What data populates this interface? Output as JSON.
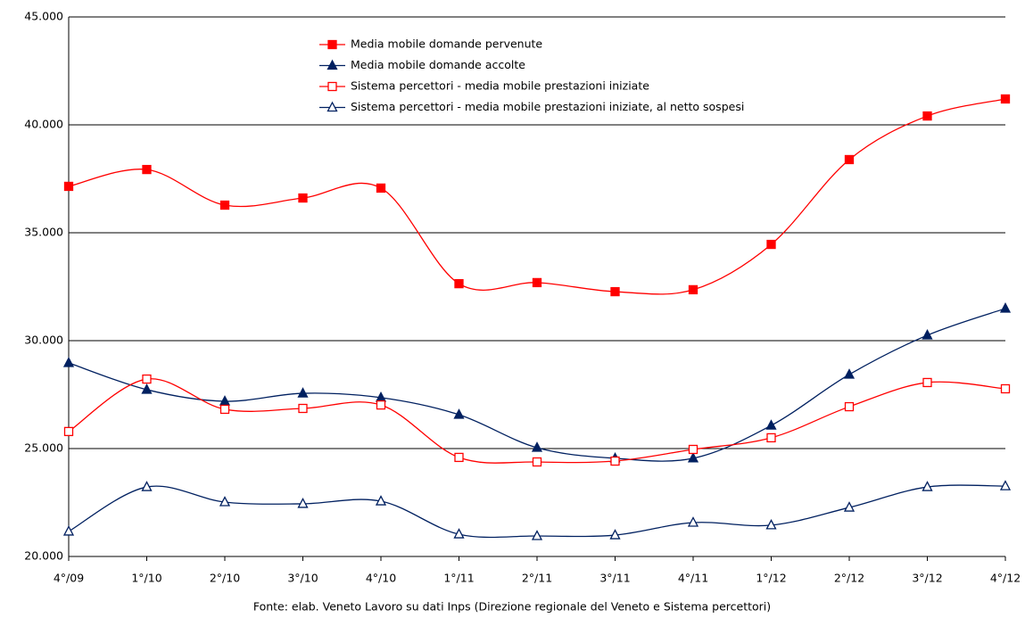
{
  "chart_data": {
    "type": "line",
    "categories": [
      "4°/09",
      "1°/10",
      "2°/10",
      "3°/10",
      "4°/10",
      "1°/11",
      "2°/11",
      "3°/11",
      "4°/11",
      "1°/12",
      "2°/12",
      "3°/12",
      "4°/12"
    ],
    "series": [
      {
        "name": "Media mobile domande pervenute",
        "color": "#ff0000",
        "marker": "square",
        "filled": true,
        "values": [
          37150,
          37930,
          36280,
          36610,
          37070,
          32640,
          32690,
          32270,
          32360,
          34460,
          38390,
          40410,
          41200
        ]
      },
      {
        "name": "Media mobile domande accolte",
        "color": "#002060",
        "marker": "triangle",
        "filled": true,
        "values": [
          28970,
          27730,
          27190,
          27560,
          27360,
          26570,
          25040,
          24550,
          24550,
          26070,
          28430,
          30250,
          31490
        ]
      },
      {
        "name": "Sistema percettori - media mobile prestazioni iniziate",
        "color": "#ff0000",
        "marker": "square",
        "filled": false,
        "values": [
          25790,
          28220,
          26820,
          26860,
          27020,
          24590,
          24380,
          24420,
          24960,
          25500,
          26940,
          28060,
          27770
        ]
      },
      {
        "name": "Sistema percettori - media mobile prestazioni iniziate, al netto sospesi",
        "color": "#002060",
        "marker": "triangle",
        "filled": false,
        "values": [
          21160,
          23220,
          22520,
          22440,
          22560,
          21030,
          20950,
          20990,
          21570,
          21450,
          22270,
          23220,
          23260
        ]
      }
    ],
    "ylim": [
      20000,
      45000
    ],
    "yticks": [
      {
        "value": 20000,
        "label": "20.000"
      },
      {
        "value": 25000,
        "label": "25.000"
      },
      {
        "value": 30000,
        "label": "30.000"
      },
      {
        "value": 35000,
        "label": "35.000"
      },
      {
        "value": 40000,
        "label": "40.000"
      },
      {
        "value": 45000,
        "label": "45.000"
      }
    ],
    "grid": true,
    "smooth": true,
    "source": "Fonte: elab. Veneto Lavoro su dati Inps (Direzione regionale del Veneto e Sistema percettori)"
  }
}
